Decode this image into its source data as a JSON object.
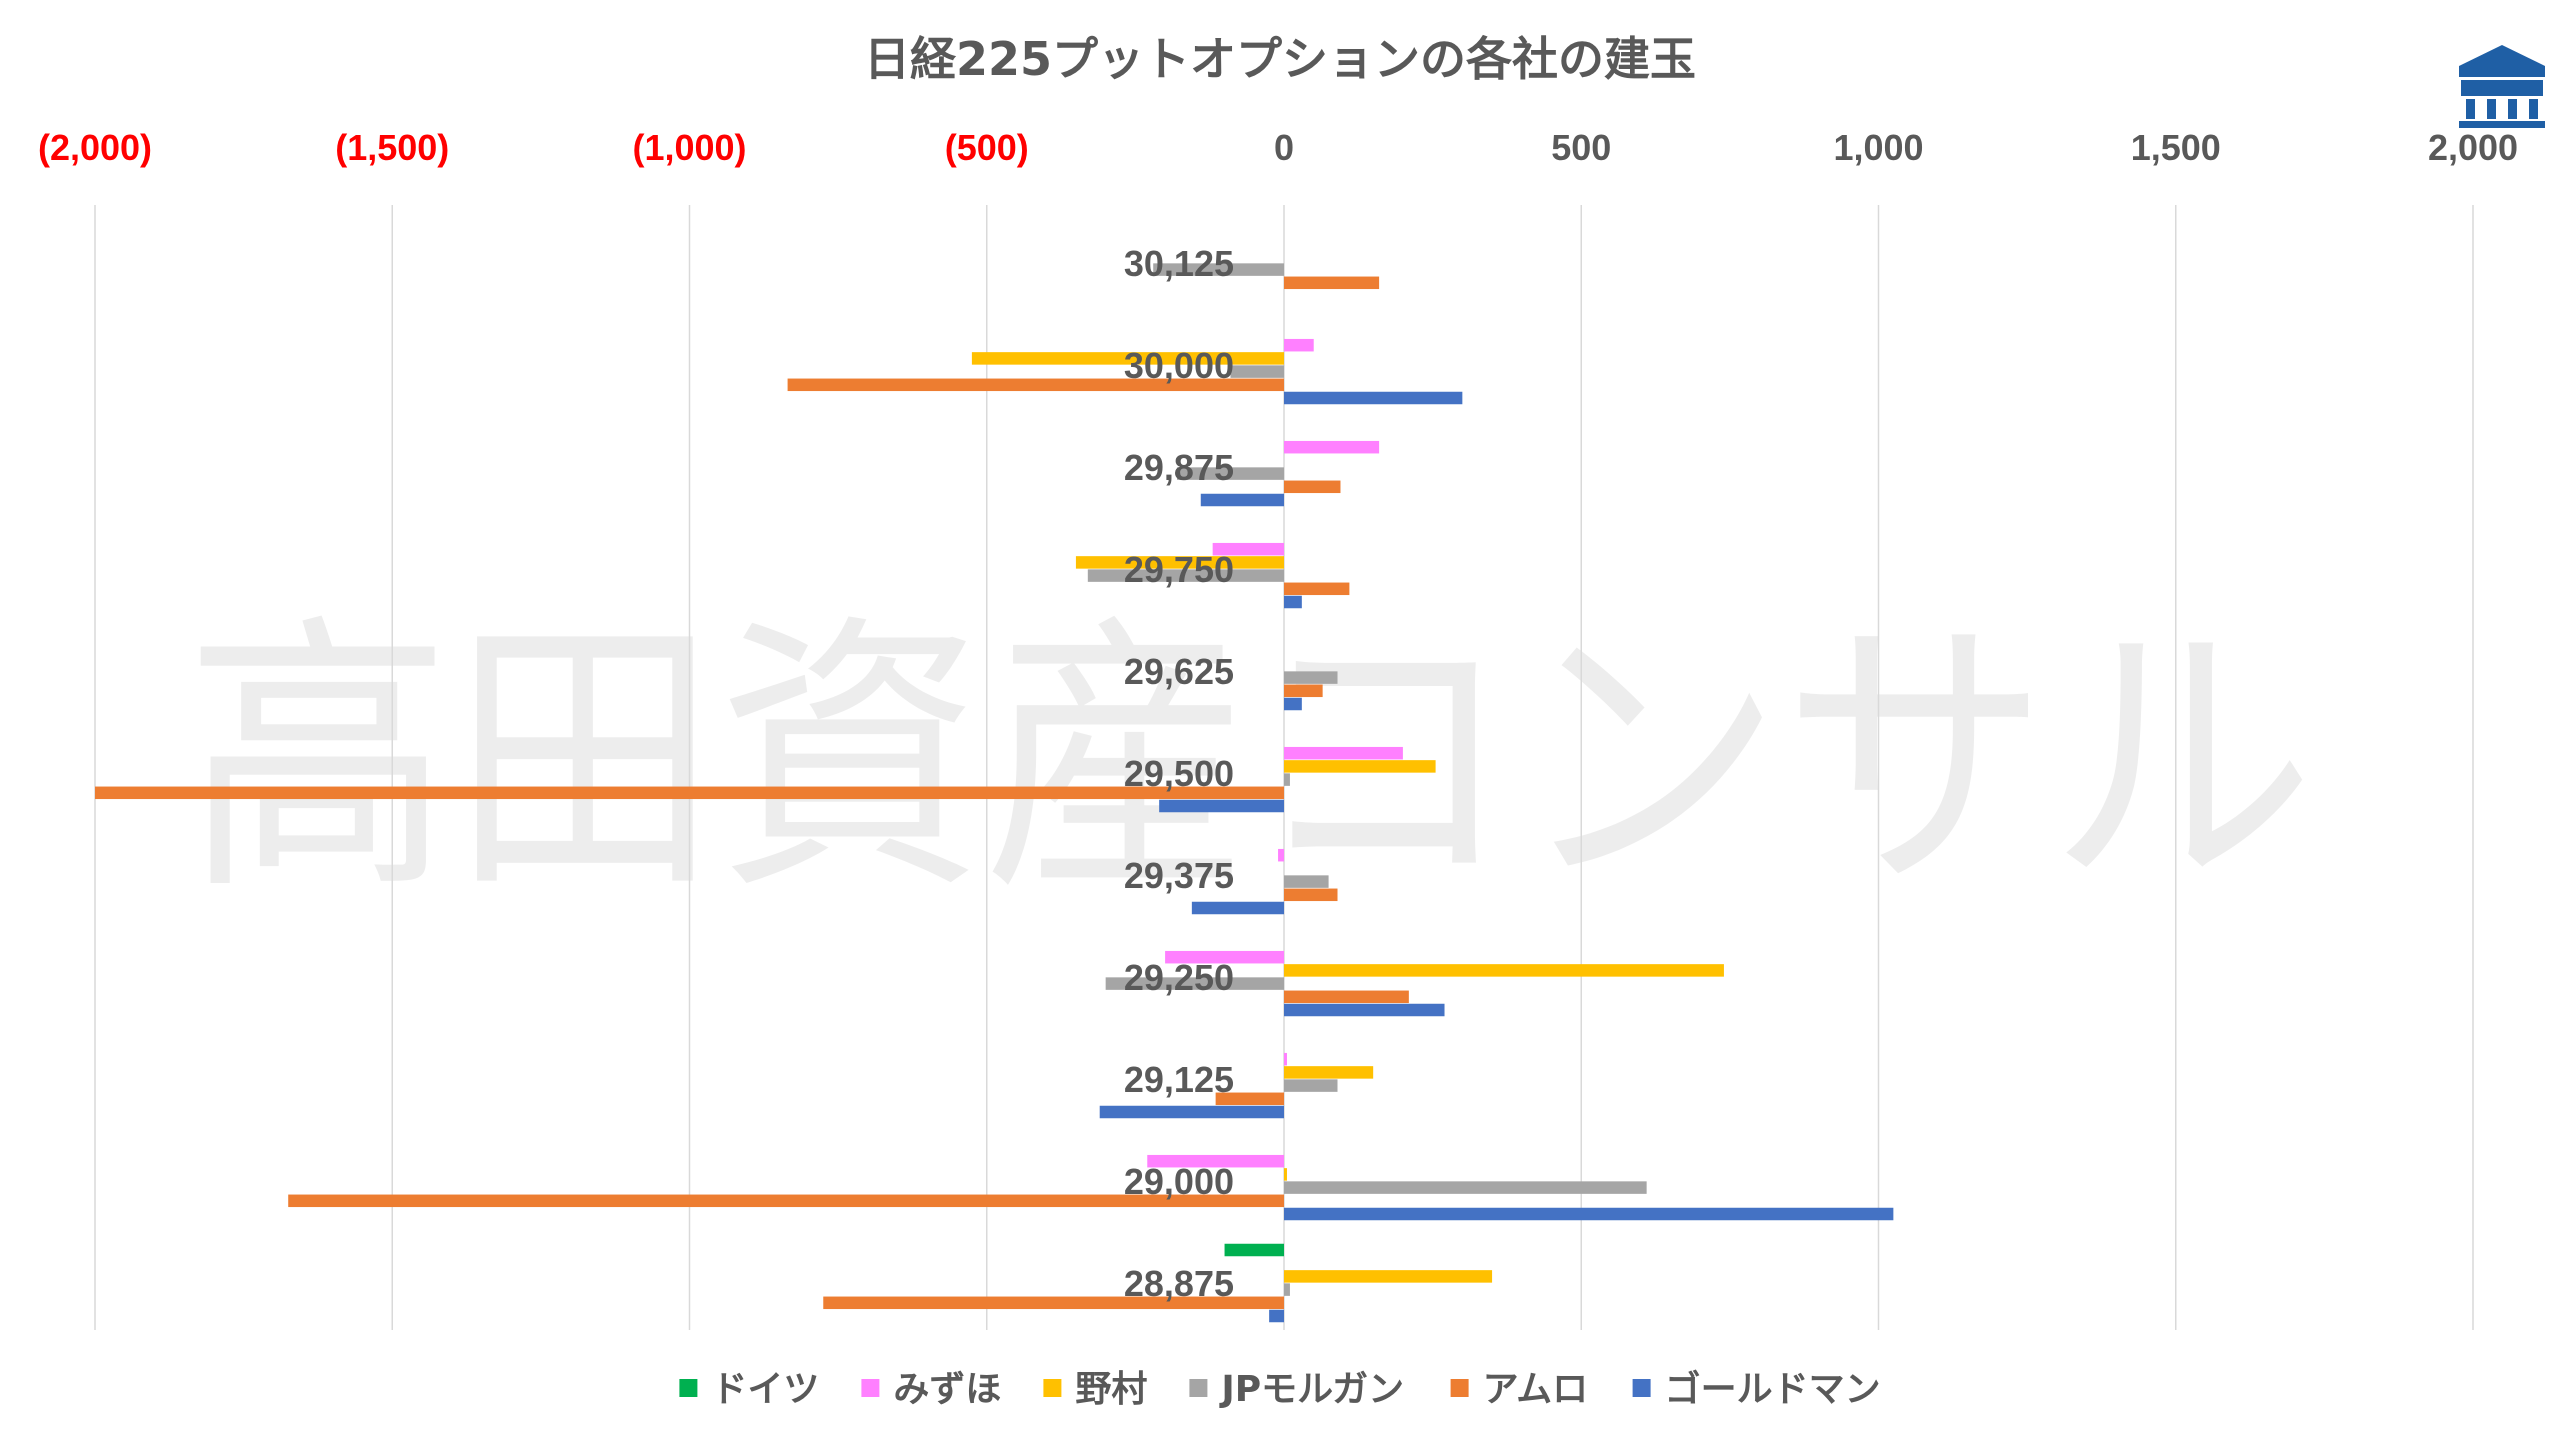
{
  "watermark": "高田資産コンサル",
  "logo": "building-logo-icon",
  "colors": {
    "ドイツ": "#00B050",
    "みずほ": "#FF80FF",
    "野村": "#FFC000",
    "JPモルガン": "#A5A5A5",
    "アムロ": "#ED7D31",
    "ゴールドマン": "#4472C4",
    "negative_tick": "#FF0000",
    "positive_tick": "#595959",
    "grid": "#D9D9D9"
  },
  "chart_data": {
    "type": "bar",
    "orientation": "horizontal",
    "title": "日経225プットオプションの各社の建玉",
    "xlim": [
      -2000,
      2000
    ],
    "x_ticks": [
      -2000,
      -1500,
      -1000,
      -500,
      0,
      500,
      1000,
      1500,
      2000
    ],
    "x_tick_labels": [
      "(2,000)",
      "(1,500)",
      "(1,000)",
      "(500)",
      "0",
      "500",
      "1,000",
      "1,500",
      "2,000"
    ],
    "axis_position": "top",
    "grid": true,
    "legend_position": "bottom",
    "categories": [
      "30,125",
      "30,000",
      "29,875",
      "29,750",
      "29,625",
      "29,500",
      "29,375",
      "29,250",
      "29,125",
      "29,000",
      "28,875"
    ],
    "series": [
      {
        "name": "ドイツ",
        "values": [
          0,
          0,
          0,
          0,
          0,
          0,
          0,
          0,
          0,
          0,
          -100
        ]
      },
      {
        "name": "みずほ",
        "values": [
          0,
          50,
          160,
          -120,
          0,
          200,
          -10,
          -200,
          5,
          -230,
          0
        ]
      },
      {
        "name": "野村",
        "values": [
          0,
          -525,
          0,
          -350,
          0,
          255,
          0,
          740,
          150,
          5,
          350
        ]
      },
      {
        "name": "JPモルガン",
        "values": [
          -220,
          -90,
          -180,
          -330,
          90,
          10,
          75,
          -300,
          90,
          610,
          10
        ]
      },
      {
        "name": "アムロ",
        "values": [
          160,
          -835,
          95,
          110,
          65,
          -2000,
          90,
          210,
          -115,
          -1675,
          -775
        ]
      },
      {
        "name": "ゴールドマン",
        "values": [
          0,
          300,
          -140,
          30,
          30,
          -210,
          -155,
          270,
          -310,
          1025,
          -25
        ]
      }
    ]
  }
}
